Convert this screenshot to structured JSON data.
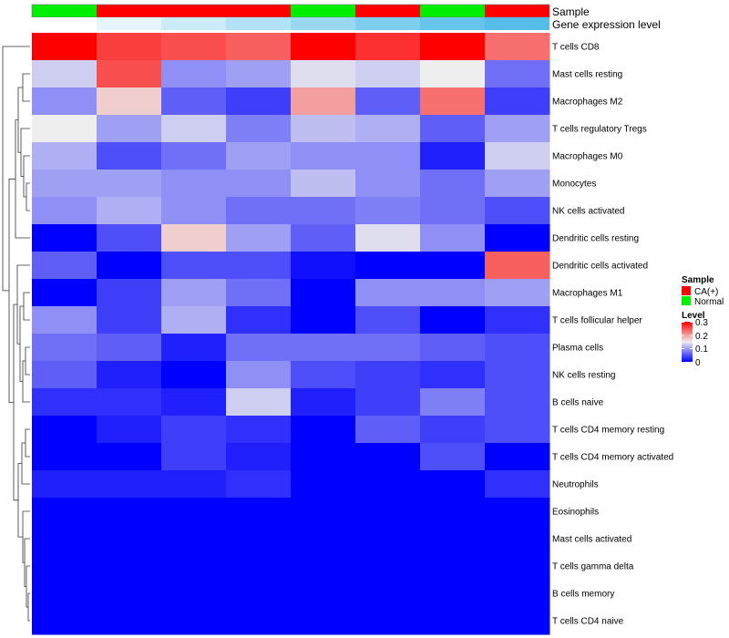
{
  "chart_data": {
    "type": "heatmap",
    "annotation_rows": {
      "sample_title": "Sample",
      "gene_title": "Gene expression level",
      "sample_groups": [
        "Normal",
        "CA(+)",
        "CA(+)",
        "CA(+)",
        "Normal",
        "CA(+)",
        "Normal",
        "CA(+)"
      ],
      "gene_levels": [
        0.0,
        0.15,
        0.3,
        0.45,
        0.6,
        0.75,
        0.9,
        1.0
      ]
    },
    "rows": [
      "T cells CD8",
      "Mast cells resting",
      "Macrophages M2",
      "T cells regulatory  Tregs",
      "Macrophages M0",
      "Monocytes",
      "NK cells activated",
      "Dendritic cells resting",
      "Dendritic cells activated",
      "Macrophages M1",
      "T cells follicular helper",
      "Plasma cells",
      "NK cells resting",
      "B cells naive",
      "T cells CD4 memory resting",
      "T cells CD4 memory activated",
      "Neutrophils",
      "Eosinophils",
      "Mast cells activated",
      "T cells gamma delta",
      "B cells memory",
      "T cells CD4 naive"
    ],
    "values": [
      [
        0.3,
        0.26,
        0.25,
        0.24,
        0.3,
        0.27,
        0.3,
        0.23
      ],
      [
        0.13,
        0.25,
        0.09,
        0.1,
        0.14,
        0.13,
        0.15,
        0.07
      ],
      [
        0.09,
        0.17,
        0.06,
        0.04,
        0.2,
        0.06,
        0.23,
        0.04
      ],
      [
        0.15,
        0.1,
        0.13,
        0.08,
        0.12,
        0.11,
        0.06,
        0.1
      ],
      [
        0.11,
        0.05,
        0.07,
        0.1,
        0.09,
        0.09,
        0.02,
        0.13
      ],
      [
        0.1,
        0.1,
        0.09,
        0.09,
        0.12,
        0.09,
        0.07,
        0.1
      ],
      [
        0.09,
        0.11,
        0.09,
        0.07,
        0.07,
        0.08,
        0.07,
        0.05
      ],
      [
        0.0,
        0.05,
        0.17,
        0.1,
        0.06,
        0.14,
        0.09,
        0.0
      ],
      [
        0.06,
        0.0,
        0.05,
        0.05,
        0.01,
        0.0,
        0.0,
        0.24
      ],
      [
        0.0,
        0.04,
        0.1,
        0.07,
        0.0,
        0.09,
        0.09,
        0.1
      ],
      [
        0.09,
        0.04,
        0.11,
        0.03,
        0.0,
        0.05,
        0.0,
        0.03
      ],
      [
        0.07,
        0.06,
        0.02,
        0.07,
        0.07,
        0.07,
        0.06,
        0.05
      ],
      [
        0.06,
        0.02,
        0.0,
        0.09,
        0.05,
        0.04,
        0.03,
        0.05
      ],
      [
        0.03,
        0.03,
        0.02,
        0.13,
        0.02,
        0.04,
        0.08,
        0.05
      ],
      [
        0.0,
        0.02,
        0.04,
        0.03,
        0.0,
        0.06,
        0.04,
        0.05
      ],
      [
        0.0,
        0.0,
        0.04,
        0.02,
        0.0,
        0.0,
        0.05,
        0.0
      ],
      [
        0.02,
        0.02,
        0.02,
        0.03,
        0.0,
        0.0,
        0.0,
        0.03
      ],
      [
        0.0,
        0.0,
        0.0,
        0.0,
        0.0,
        0.0,
        0.0,
        0.0
      ],
      [
        0.0,
        0.0,
        0.0,
        0.0,
        0.0,
        0.0,
        0.0,
        0.0
      ],
      [
        0.0,
        0.0,
        0.0,
        0.0,
        0.0,
        0.0,
        0.0,
        0.0
      ],
      [
        0.0,
        0.0,
        0.0,
        0.0,
        0.0,
        0.0,
        0.0,
        0.0
      ],
      [
        0.0,
        0.0,
        0.0,
        0.0,
        0.0,
        0.0,
        0.0,
        0.0
      ]
    ],
    "color_scale": {
      "low": "#0000ff",
      "mid": "#eeeeee",
      "high": "#ff0000",
      "range": [
        0,
        0.3
      ],
      "midpoint": 0.15
    },
    "gene_colors": {
      "low": "#ffffff",
      "high": "#56bde8"
    },
    "sample_legend": {
      "title": "Sample",
      "items": [
        {
          "label": "CA(+)",
          "color": "#ff0000"
        },
        {
          "label": "Normal",
          "color": "#00ee00"
        }
      ]
    },
    "level_legend": {
      "title": "Level",
      "ticks": [
        "0.3",
        "0.2",
        "0.1",
        "0"
      ]
    }
  }
}
